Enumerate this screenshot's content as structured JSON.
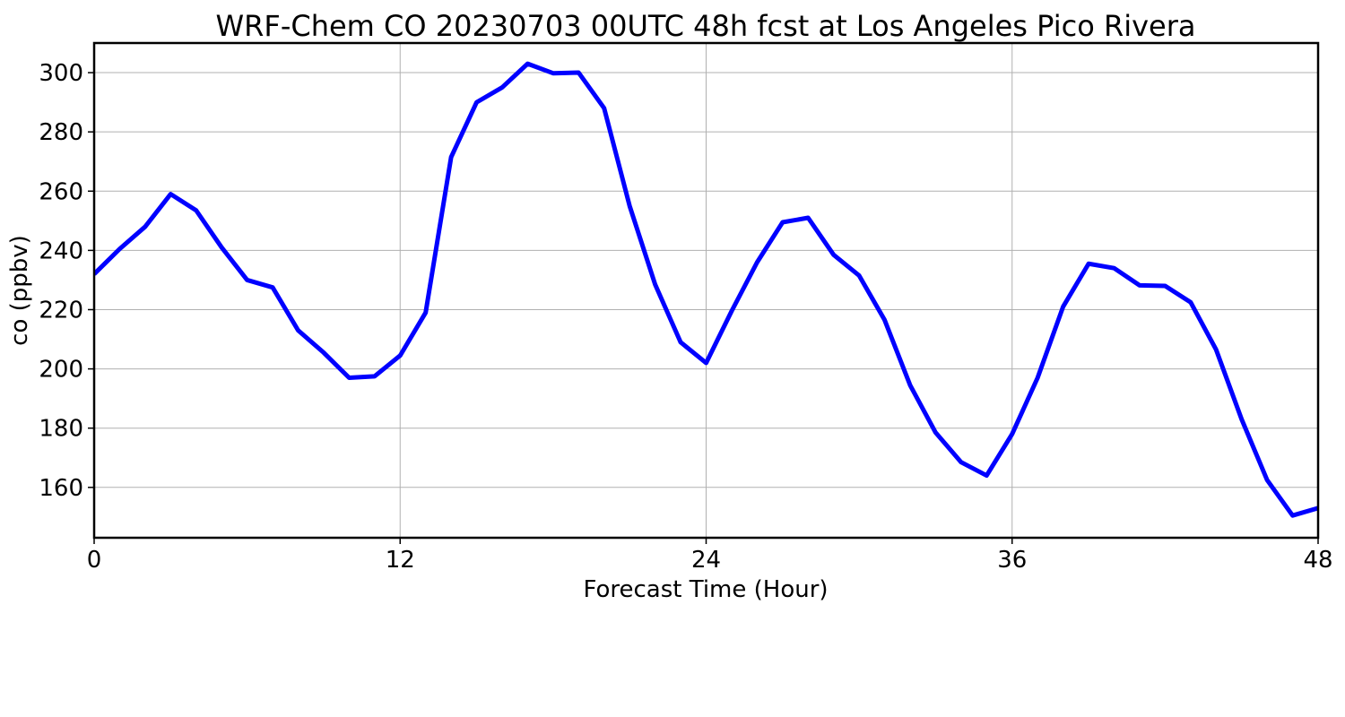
{
  "chart_data": {
    "type": "line",
    "title": "WRF-Chem CO  20230703 00UTC 48h fcst at Los Angeles Pico Rivera",
    "xlabel": "Forecast Time (Hour)",
    "ylabel": "co  (ppbv)",
    "xlim": [
      0,
      48
    ],
    "ylim": [
      143,
      310
    ],
    "xticks": [
      0,
      12,
      24,
      36,
      48
    ],
    "yticks": [
      160,
      180,
      200,
      220,
      240,
      260,
      280,
      300
    ],
    "grid": true,
    "series": [
      {
        "color": "#0000ff",
        "x": [
          0,
          1,
          2,
          3,
          4,
          5,
          6,
          7,
          8,
          9,
          10,
          11,
          12,
          13,
          14,
          15,
          16,
          17,
          18,
          19,
          20,
          21,
          22,
          23,
          24,
          25,
          26,
          27,
          28,
          29,
          30,
          31,
          32,
          33,
          34,
          35,
          36,
          37,
          38,
          39,
          40,
          41,
          42,
          43,
          44,
          45,
          46,
          47,
          48
        ],
        "values": [
          232,
          240.5,
          248,
          259,
          253.5,
          241,
          230,
          227.5,
          213,
          205.5,
          197,
          197.5,
          204.5,
          219,
          271.5,
          290,
          295,
          303,
          299.8,
          300,
          288,
          255,
          228.5,
          209,
          202,
          219.5,
          236,
          249.5,
          251,
          238.5,
          231.5,
          216.5,
          194.5,
          178.5,
          168.5,
          164,
          178,
          197,
          221,
          235.5,
          234,
          228.2,
          228,
          222.5,
          206.5,
          183,
          162.5,
          150.5,
          153
        ]
      }
    ]
  }
}
